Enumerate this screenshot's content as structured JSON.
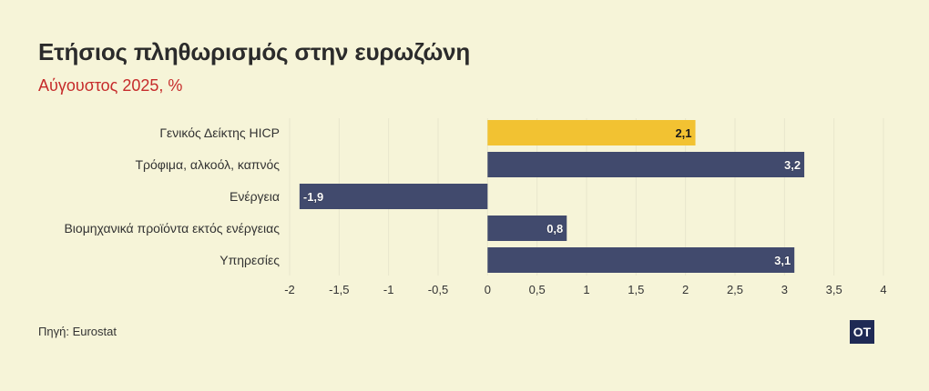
{
  "header": {
    "title": "Ετήσιος πληθωρισμός στην ευρωζώνη",
    "subtitle": "Αύγουστος 2025, %"
  },
  "footer": {
    "source": "Πηγή: Eurostat",
    "logo_text": "OT"
  },
  "colors": {
    "background": "#f6f4d8",
    "highlight_bar": "#f2c232",
    "bar": "#414a6d",
    "grid": "#e8e6cc",
    "subtitle": "#c62b2b",
    "logo_bg": "#1f2a55"
  },
  "chart_data": {
    "type": "bar",
    "orientation": "horizontal",
    "categories": [
      "Γενικός Δείκτης HICP",
      "Τρόφιμα, αλκοόλ, καπνός",
      "Ενέργεια",
      "Βιομηχανικά προϊόντα εκτός ενέργειας",
      "Υπηρεσίες"
    ],
    "values": [
      2.1,
      3.2,
      -1.9,
      0.8,
      3.1
    ],
    "value_labels": [
      "2,1",
      "3,2",
      "-1,9",
      "0,8",
      "3,1"
    ],
    "highlight_index": 0,
    "xlim": [
      -2,
      4
    ],
    "xticks": [
      -2,
      -1.5,
      -1,
      -0.5,
      0,
      0.5,
      1,
      1.5,
      2,
      2.5,
      3,
      3.5,
      4
    ],
    "xtick_labels": [
      "-2",
      "-1,5",
      "-1",
      "-0,5",
      "0",
      "0,5",
      "1",
      "1,5",
      "2",
      "2,5",
      "3",
      "3,5",
      "4"
    ],
    "grid": "vertical",
    "legend": "none"
  }
}
